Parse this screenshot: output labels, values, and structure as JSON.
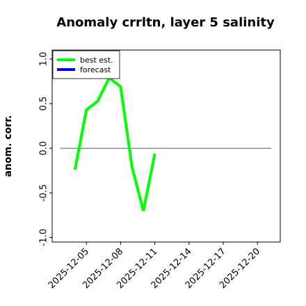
{
  "chart_data": {
    "type": "line",
    "title": "Anomaly crrltn, layer 5 salinity",
    "y_label": "anom. corr.",
    "x": [
      "2025-12-04",
      "2025-12-05",
      "2025-12-06",
      "2025-12-07",
      "2025-12-08",
      "2025-12-09",
      "2025-12-10",
      "2025-12-11"
    ],
    "series": [
      {
        "name": "best est.",
        "color": "#00ff00",
        "values": [
          -0.24,
          0.43,
          0.53,
          0.79,
          0.69,
          -0.21,
          -0.7,
          -0.06
        ]
      },
      {
        "name": "forecast",
        "color": "#0000ff",
        "values": [
          null,
          null,
          null,
          null,
          null,
          null,
          null,
          null
        ]
      }
    ],
    "xlim": [
      "2025-12-02",
      "2025-12-22"
    ],
    "xticks": [
      "2025-12-05",
      "2025-12-08",
      "2025-12-11",
      "2025-12-14",
      "2025-12-17",
      "2025-12-20"
    ],
    "highlight_xtick": {
      "index": 2,
      "color": "#228b22"
    },
    "ylim": [
      -1.05,
      1.1
    ],
    "yticks": [
      {
        "value": -1,
        "label": "-1.0"
      },
      -0.5,
      {
        "value": 0,
        "label": "0.0"
      },
      0.5,
      {
        "value": 1,
        "label": "1.0"
      }
    ],
    "hline": 0,
    "legend": "upper left"
  }
}
